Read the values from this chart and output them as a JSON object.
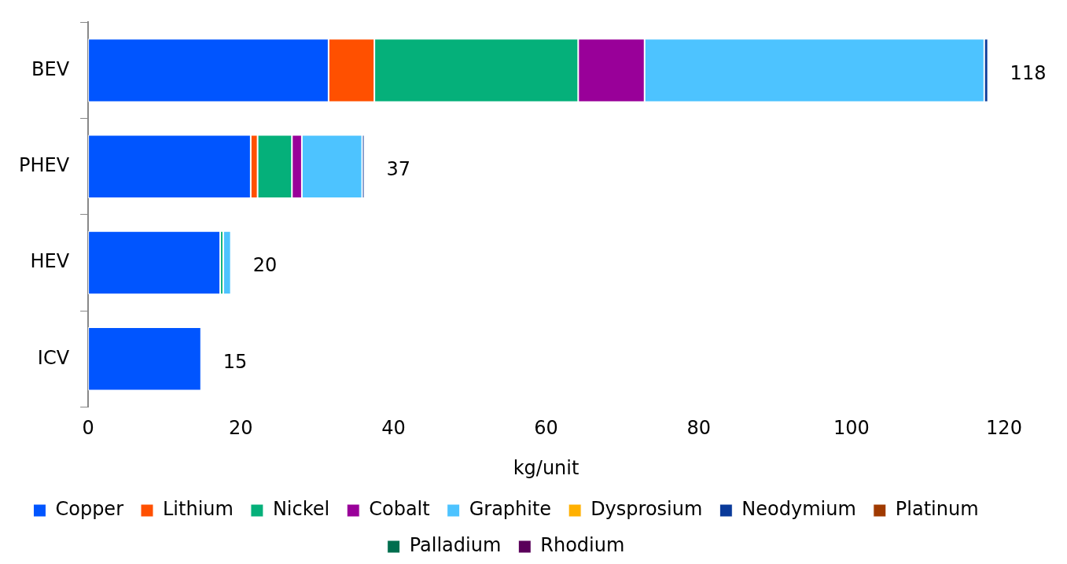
{
  "chart_data": {
    "type": "bar",
    "orientation": "horizontal",
    "stacked": true,
    "xlabel": "kg/unit",
    "categories": [
      "BEV",
      "PHEV",
      "HEV",
      "ICV"
    ],
    "series": [
      {
        "name": "Copper",
        "color": "#0055ff",
        "values": [
          31.5,
          21.3,
          17.3,
          14.8
        ]
      },
      {
        "name": "Lithium",
        "color": "#ff5000",
        "values": [
          6.0,
          0.9,
          null,
          null
        ]
      },
      {
        "name": "Nickel",
        "color": "#05b07a",
        "values": [
          26.7,
          4.5,
          0.4,
          null
        ]
      },
      {
        "name": "Cobalt",
        "color": "#990099",
        "values": [
          8.7,
          1.3,
          null,
          null
        ]
      },
      {
        "name": "Graphite",
        "color": "#4dc3ff",
        "values": [
          44.5,
          7.9,
          1.0,
          null
        ]
      },
      {
        "name": "Dysprosium",
        "color": "#ffb000",
        "values": [
          null,
          null,
          null,
          null
        ]
      },
      {
        "name": "Neodymium",
        "color": "#0a3a9a",
        "values": [
          0.5,
          0.3,
          null,
          null
        ]
      },
      {
        "name": "Platinum",
        "color": "#a03a00",
        "values": [
          null,
          null,
          null,
          null
        ]
      },
      {
        "name": "Palladium",
        "color": "#006e4e",
        "values": [
          null,
          null,
          null,
          null
        ]
      },
      {
        "name": "Rhodium",
        "color": "#5a005a",
        "values": [
          null,
          null,
          null,
          null
        ]
      }
    ],
    "totals": [
      "118",
      "37",
      "20",
      "15"
    ],
    "xlim": [
      0,
      120
    ],
    "xticks": [
      0,
      20,
      40,
      60,
      80,
      100,
      120
    ],
    "grid": false,
    "legend": "bottom"
  }
}
